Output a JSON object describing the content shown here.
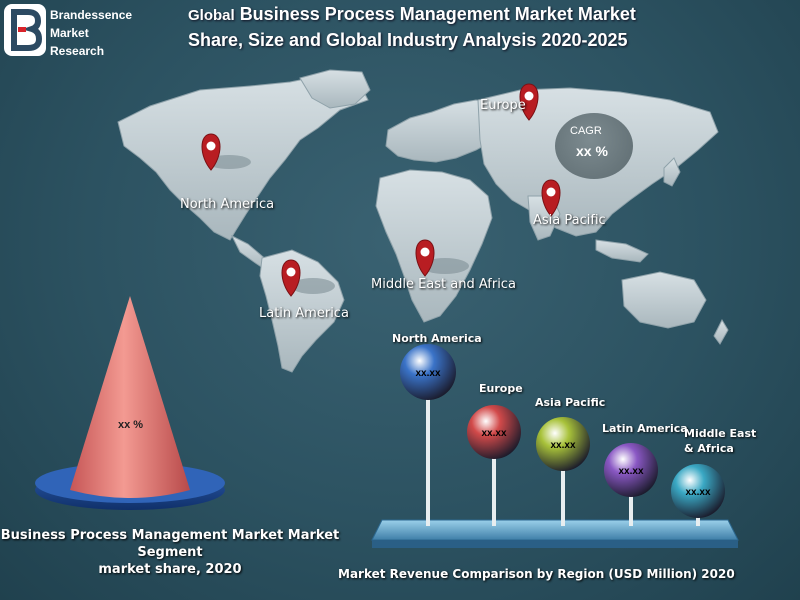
{
  "logo": {
    "lines": [
      "Brandessence",
      "Market",
      "Research"
    ]
  },
  "title": {
    "prefix": "Global",
    "main": "Business Process Management Market   Market",
    "line2": "Share, Size and Global Industry Analysis 2020-2025"
  },
  "map": {
    "regions": [
      {
        "label": "North America"
      },
      {
        "label": "Europe"
      },
      {
        "label": "Asia Pacific"
      },
      {
        "label": "Middle East and Africa"
      },
      {
        "label": "Latin America"
      }
    ],
    "cagr": {
      "label": "CAGR",
      "value": "xx %"
    }
  },
  "cone": {
    "value": "xx %",
    "caption": [
      "Business Process Management Market  Market",
      "Segment",
      "market share, 2020"
    ]
  },
  "chart_data": {
    "type": "bubble",
    "title": "Market Revenue Comparison by Region (USD Million) 2020",
    "series": [
      {
        "label": "North America",
        "value": "xx.xx",
        "color": "#3a73c8"
      },
      {
        "label": "Europe",
        "value": "xx.xx",
        "color": "#d24a4a"
      },
      {
        "label": "Asia Pacific",
        "value": "xx.xx",
        "color": "#a8c23a"
      },
      {
        "label": "Latin America",
        "value": "xx.xx",
        "color": "#8a58c4"
      },
      {
        "label": "Middle East & Africa",
        "value": "xx.xx",
        "color": "#3aa8c4"
      }
    ]
  }
}
